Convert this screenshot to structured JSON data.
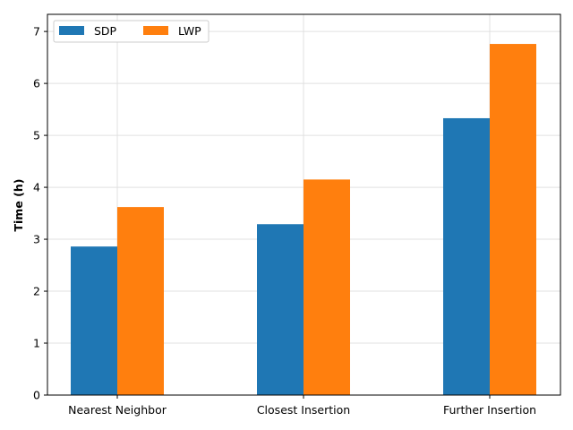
{
  "chart_data": {
    "type": "bar",
    "categories": [
      "Nearest Neighbor",
      "Closest Insertion",
      "Further Insertion"
    ],
    "series": [
      {
        "name": "SDP",
        "values": [
          2.86,
          3.29,
          5.33
        ],
        "color": "#1f77b4"
      },
      {
        "name": "LWP",
        "values": [
          3.62,
          4.15,
          6.76
        ],
        "color": "#ff7f0e"
      }
    ],
    "title": "",
    "xlabel": "",
    "ylabel": "Time (h)",
    "ylim": [
      0,
      7.33
    ],
    "yticks": [
      "0",
      "1",
      "2",
      "3",
      "4",
      "5",
      "6",
      "7"
    ],
    "grid": true,
    "legend_position": "top-left"
  }
}
